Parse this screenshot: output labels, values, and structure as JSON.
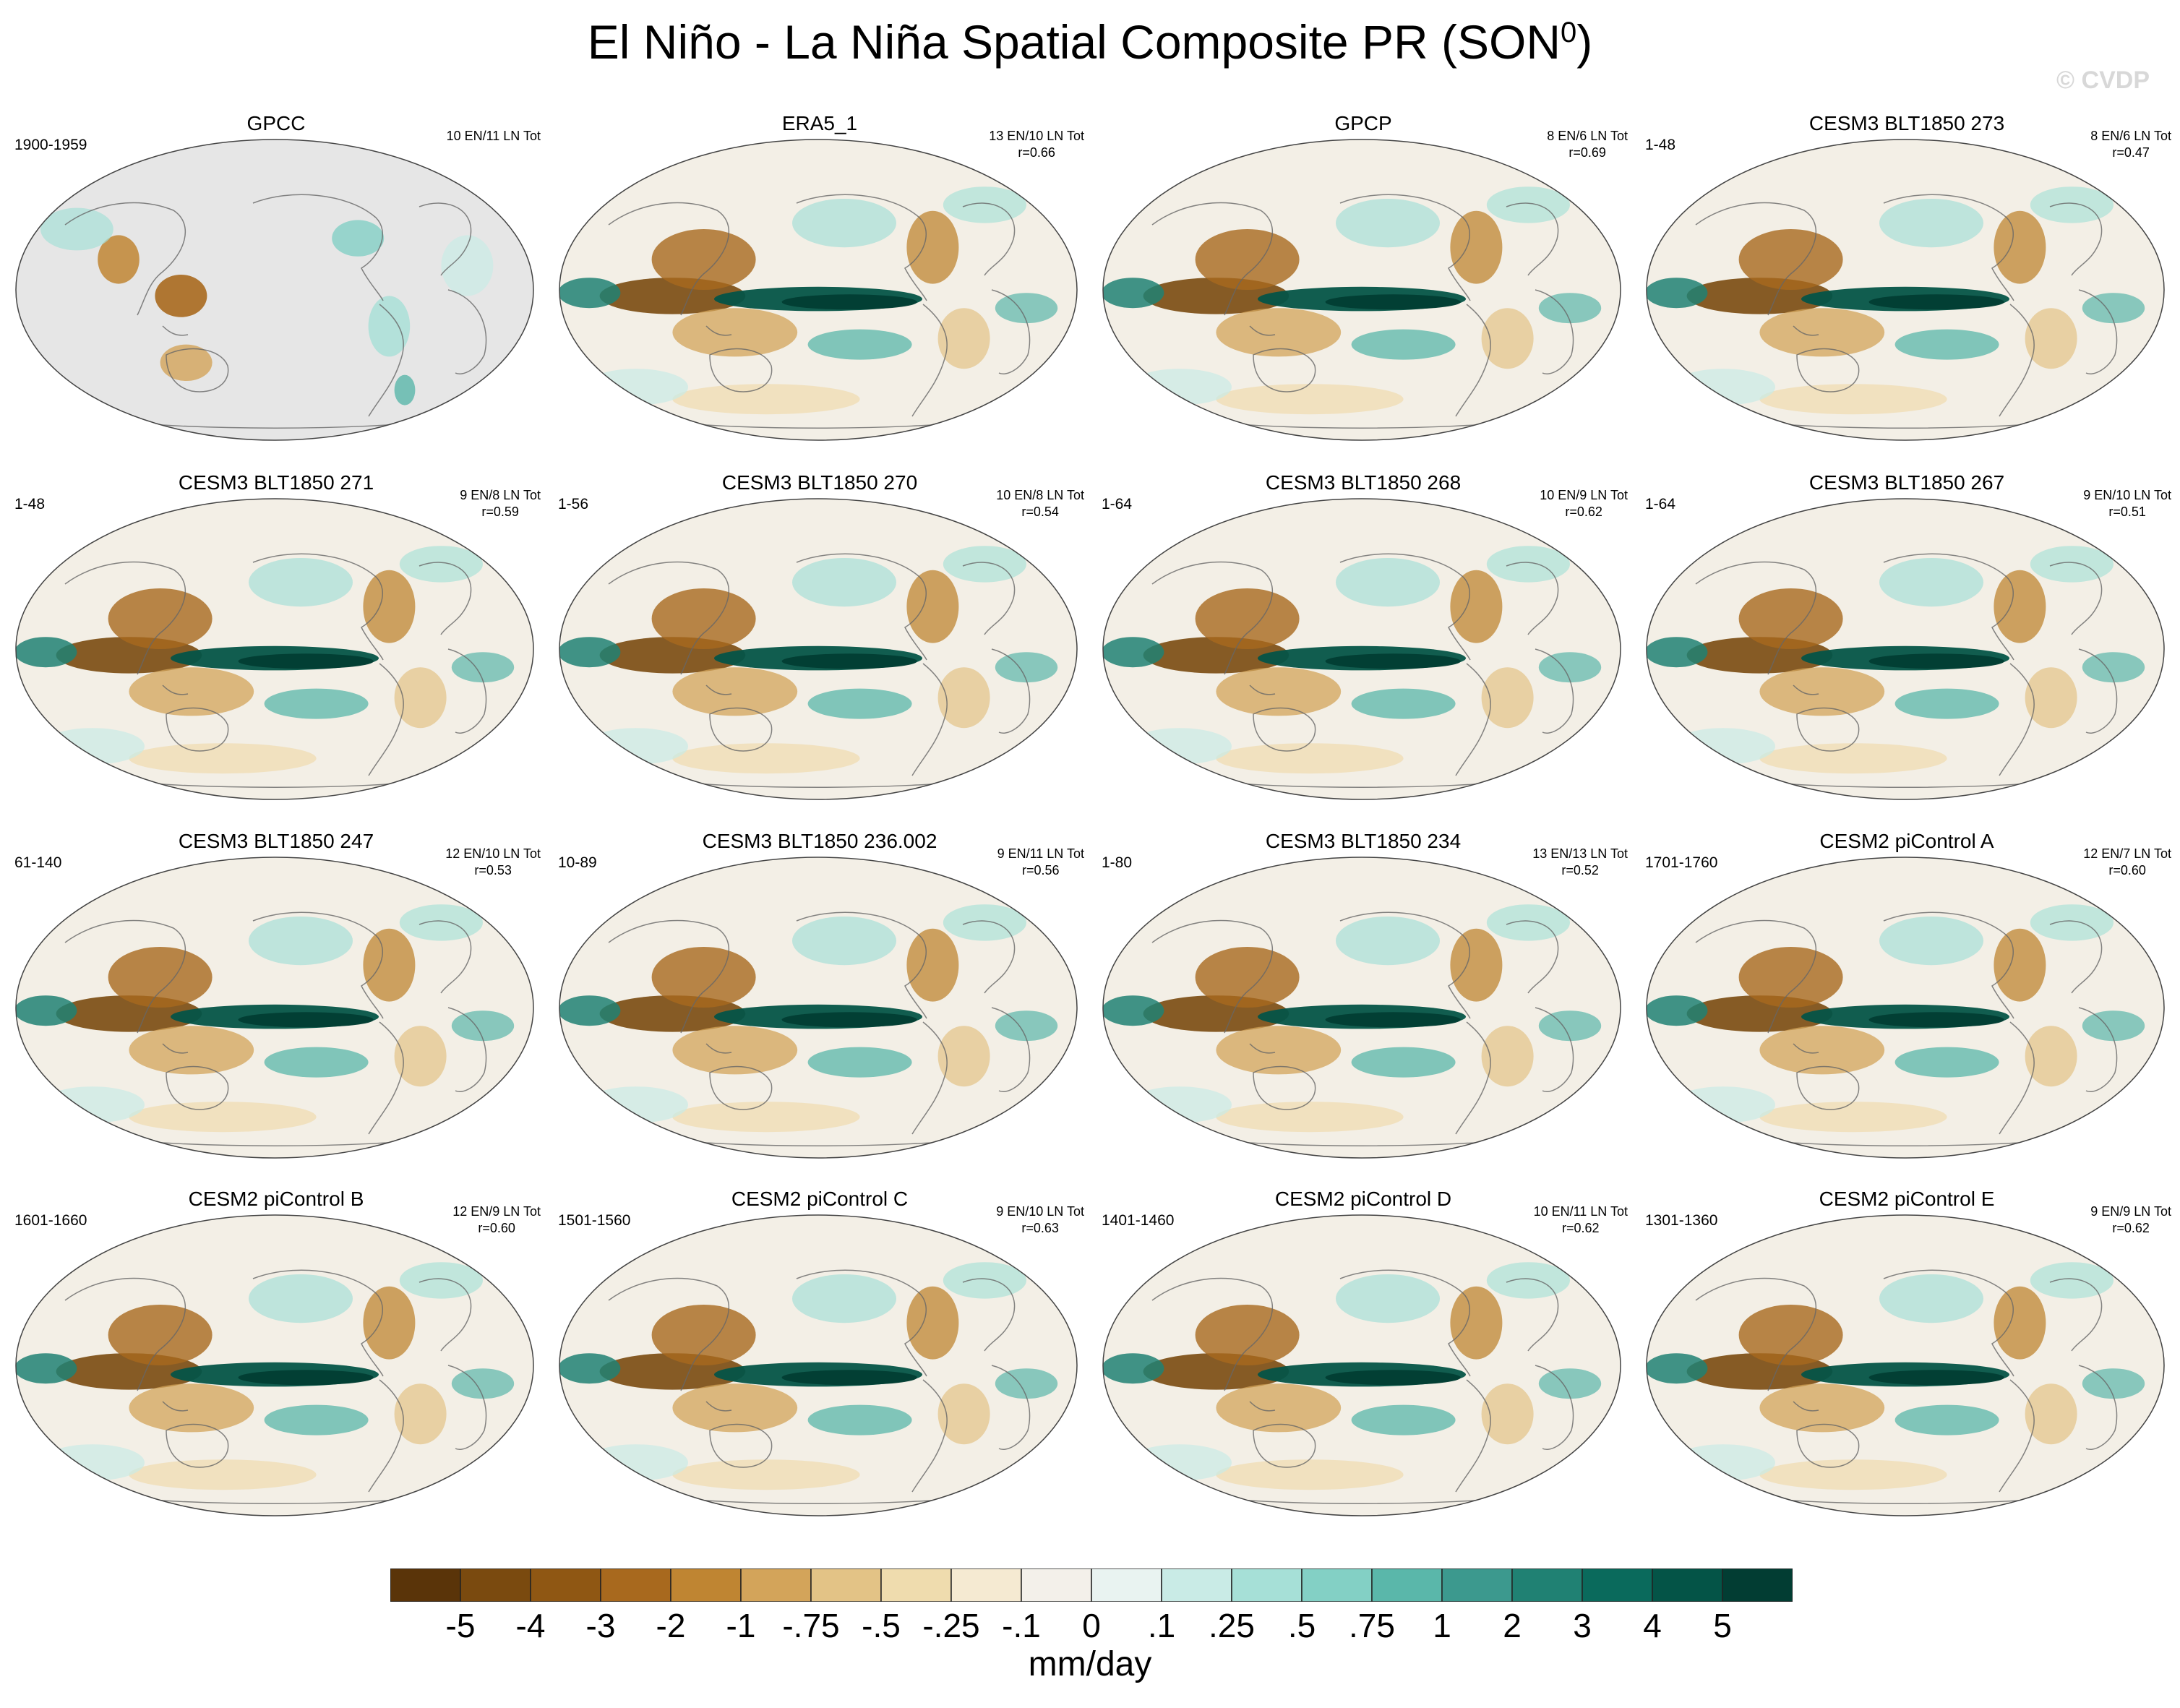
{
  "title_main": "El Niño - La Niña Spatial Composite PR (SON",
  "title_sup": "0",
  "title_end": ")",
  "watermark": "© CVDP",
  "panels": [
    {
      "title": "GPCC",
      "period": "1900-1959",
      "counts": "10 EN/11 LN Tot",
      "corr": "",
      "obs_mask": true
    },
    {
      "title": "ERA5_1",
      "period": "",
      "counts": "13 EN/10 LN Tot",
      "corr": "r=0.66",
      "obs_mask": false
    },
    {
      "title": "GPCP",
      "period": "",
      "counts": "8 EN/6 LN Tot",
      "corr": "r=0.69",
      "obs_mask": false
    },
    {
      "title": "CESM3 BLT1850 273",
      "period": "1-48",
      "counts": "8 EN/6 LN Tot",
      "corr": "r=0.47",
      "obs_mask": false
    },
    {
      "title": "CESM3 BLT1850 271",
      "period": "1-48",
      "counts": "9 EN/8 LN Tot",
      "corr": "r=0.59",
      "obs_mask": false
    },
    {
      "title": "CESM3 BLT1850 270",
      "period": "1-56",
      "counts": "10 EN/8 LN Tot",
      "corr": "r=0.54",
      "obs_mask": false
    },
    {
      "title": "CESM3 BLT1850 268",
      "period": "1-64",
      "counts": "10 EN/9 LN Tot",
      "corr": "r=0.62",
      "obs_mask": false
    },
    {
      "title": "CESM3 BLT1850 267",
      "period": "1-64",
      "counts": "9 EN/10 LN Tot",
      "corr": "r=0.51",
      "obs_mask": false
    },
    {
      "title": "CESM3 BLT1850 247",
      "period": "61-140",
      "counts": "12 EN/10 LN Tot",
      "corr": "r=0.53",
      "obs_mask": false
    },
    {
      "title": "CESM3 BLT1850 236.002",
      "period": "10-89",
      "counts": "9 EN/11 LN Tot",
      "corr": "r=0.56",
      "obs_mask": false
    },
    {
      "title": "CESM3 BLT1850 234",
      "period": "1-80",
      "counts": "13 EN/13 LN Tot",
      "corr": "r=0.52",
      "obs_mask": false
    },
    {
      "title": "CESM2 piControl A",
      "period": "1701-1760",
      "counts": "12 EN/7 LN Tot",
      "corr": "r=0.60",
      "obs_mask": false
    },
    {
      "title": "CESM2 piControl B",
      "period": "1601-1660",
      "counts": "12 EN/9 LN Tot",
      "corr": "r=0.60",
      "obs_mask": false
    },
    {
      "title": "CESM2 piControl C",
      "period": "1501-1560",
      "counts": "9 EN/10 LN Tot",
      "corr": "r=0.63",
      "obs_mask": false
    },
    {
      "title": "CESM2 piControl D",
      "period": "1401-1460",
      "counts": "10 EN/11 LN Tot",
      "corr": "r=0.62",
      "obs_mask": false
    },
    {
      "title": "CESM2 piControl E",
      "period": "1301-1360",
      "counts": "9 EN/9 LN Tot",
      "corr": "r=0.62",
      "obs_mask": false
    }
  ],
  "colorbar": {
    "colors": [
      "#5a3409",
      "#7a4a0f",
      "#8f5713",
      "#a8691e",
      "#bf8532",
      "#d3a45a",
      "#e3c386",
      "#efdcae",
      "#f5ead2",
      "#f3f0ea",
      "#e9f3f1",
      "#c9ebe6",
      "#a6e0d7",
      "#83d0c5",
      "#5ab7aa",
      "#3c998e",
      "#208173",
      "#0a6a5c",
      "#045447",
      "#023d33"
    ],
    "labels": [
      "-5",
      "-4",
      "-3",
      "-2",
      "-1",
      "-.75",
      "-.5",
      "-.25",
      "-.1",
      "0",
      ".1",
      ".25",
      ".5",
      ".75",
      "1",
      "2",
      "3",
      "4",
      "5"
    ]
  },
  "units": "mm/day",
  "chart_data": {
    "type": "heatmap",
    "title": "El Niño - La Niña Spatial Composite PR (SON0)",
    "projection": "Robinson-style global map, Pacific-centered",
    "grid": "4x4 panels",
    "panels": [
      "GPCC",
      "ERA5_1",
      "GPCP",
      "CESM3 BLT1850 273",
      "CESM3 BLT1850 271",
      "CESM3 BLT1850 270",
      "CESM3 BLT1850 268",
      "CESM3 BLT1850 267",
      "CESM3 BLT1850 247",
      "CESM3 BLT1850 236.002",
      "CESM3 BLT1850 234",
      "CESM2 piControl A",
      "CESM2 piControl B",
      "CESM2 piControl C",
      "CESM2 piControl D",
      "CESM2 piControl E"
    ],
    "pattern_correlations": [
      null,
      0.66,
      0.69,
      0.47,
      0.59,
      0.54,
      0.62,
      0.51,
      0.53,
      0.56,
      0.52,
      0.6,
      0.6,
      0.63,
      0.62,
      0.62
    ],
    "color_levels": [
      -5,
      -4,
      -3,
      -2,
      -1,
      -0.75,
      -0.5,
      -0.25,
      -0.1,
      0,
      0.1,
      0.25,
      0.5,
      0.75,
      1,
      2,
      3,
      4,
      5
    ],
    "units": "mm/day"
  }
}
